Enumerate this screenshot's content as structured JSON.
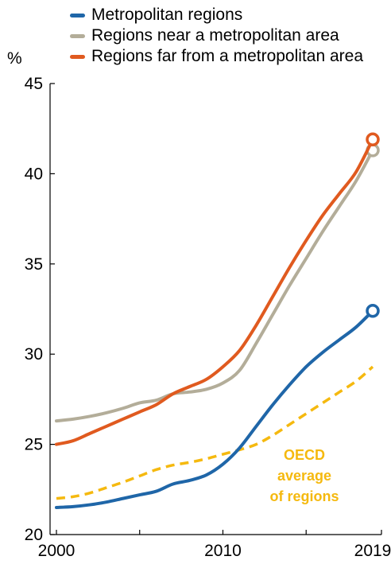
{
  "chart_data": {
    "type": "line",
    "title": "",
    "xlabel": "",
    "ylabel": "%",
    "ylim": [
      20,
      45
    ],
    "xlim": [
      2000,
      2019
    ],
    "yticks": [
      20,
      25,
      30,
      35,
      40,
      45
    ],
    "xticks": [
      "2000",
      "2010",
      "2019"
    ],
    "grid": false,
    "legend_position": "top",
    "series": [
      {
        "name": "Metropolitan regions",
        "color": "#1f66a8",
        "x": [
          2000,
          2001,
          2002,
          2003,
          2004,
          2005,
          2006,
          2007,
          2008,
          2009,
          2010,
          2011,
          2012,
          2013,
          2014,
          2015,
          2016,
          2017,
          2018,
          2019
        ],
        "y": [
          21.5,
          21.55,
          21.65,
          21.8,
          22.0,
          22.2,
          22.4,
          22.8,
          23.0,
          23.3,
          23.9,
          24.8,
          26.0,
          27.2,
          28.3,
          29.3,
          30.1,
          30.8,
          31.5,
          32.4
        ],
        "end_marker": true
      },
      {
        "name": "Regions near a metropolitan area",
        "color": "#b3ad99",
        "x": [
          2000,
          2001,
          2002,
          2003,
          2004,
          2005,
          2006,
          2007,
          2008,
          2009,
          2010,
          2011,
          2012,
          2013,
          2014,
          2015,
          2016,
          2017,
          2018,
          2019
        ],
        "y": [
          26.3,
          26.4,
          26.55,
          26.75,
          27.0,
          27.3,
          27.45,
          27.8,
          27.9,
          28.05,
          28.4,
          29.1,
          30.6,
          32.2,
          33.8,
          35.3,
          36.8,
          38.2,
          39.6,
          41.3
        ],
        "end_marker": true
      },
      {
        "name": "Regions far from a metropolitan area",
        "color": "#e05a1f",
        "x": [
          2000,
          2001,
          2002,
          2003,
          2004,
          2005,
          2006,
          2007,
          2008,
          2009,
          2010,
          2011,
          2012,
          2013,
          2014,
          2015,
          2016,
          2017,
          2018,
          2019
        ],
        "y": [
          25.0,
          25.2,
          25.6,
          26.0,
          26.4,
          26.8,
          27.2,
          27.8,
          28.2,
          28.6,
          29.3,
          30.2,
          31.6,
          33.2,
          34.8,
          36.3,
          37.7,
          38.9,
          40.1,
          41.9
        ],
        "end_marker": true
      },
      {
        "color": "#f5b90f",
        "dashed": true,
        "x": [
          2000,
          2001,
          2002,
          2003,
          2004,
          2005,
          2006,
          2007,
          2008,
          2009,
          2010,
          2011,
          2012,
          2013,
          2014,
          2015,
          2016,
          2017,
          2018,
          2019
        ],
        "y": [
          22.0,
          22.1,
          22.3,
          22.6,
          22.9,
          23.25,
          23.6,
          23.85,
          24.0,
          24.2,
          24.45,
          24.7,
          25.0,
          25.5,
          26.1,
          26.7,
          27.3,
          27.9,
          28.5,
          29.3
        ],
        "end_marker": false
      }
    ],
    "annotation": {
      "lines": [
        "OECD",
        "average",
        "of regions"
      ],
      "color": "#f5b90f"
    }
  }
}
